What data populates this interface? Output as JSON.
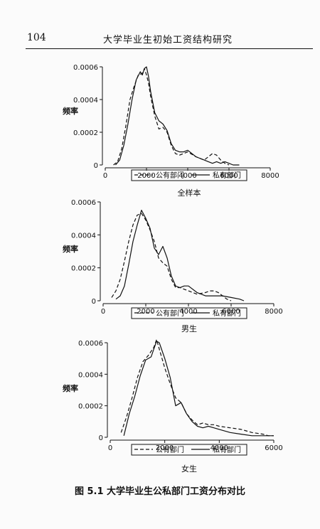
{
  "header": {
    "page_number": "104",
    "running_title": "大学毕业生初始工资结构研究"
  },
  "figure": {
    "caption": "图 5.1   大学毕业生公私部门工资分布对比"
  },
  "chart_data": [
    {
      "type": "line",
      "title": "全样本",
      "ylabel": "频率",
      "xlim": [
        0,
        8000
      ],
      "ylim": [
        0,
        0.0006
      ],
      "xticks": [
        "0",
        "2000",
        "4000",
        "6000",
        "8000"
      ],
      "yticks": [
        "0",
        "0.0002",
        "0.0004",
        "0.0006"
      ],
      "legend": [
        "公有部门",
        "私有部门"
      ],
      "series": [
        {
          "name": "公有部门",
          "style": "dashed",
          "x": [
            400,
            600,
            800,
            1000,
            1200,
            1400,
            1600,
            1800,
            1900,
            2000,
            2100,
            2200,
            2400,
            2600,
            2800,
            3000,
            3200,
            3400,
            3600,
            3800,
            4000,
            4400,
            4800,
            5000,
            5200,
            5400,
            5600,
            5800,
            6000
          ],
          "y": [
            0,
            2e-05,
            0.0001,
            0.00024,
            0.0004,
            0.00048,
            0.00055,
            0.00056,
            0.00059,
            0.00055,
            0.0005,
            0.00042,
            0.0003,
            0.00022,
            0.00023,
            0.0002,
            0.00012,
            7e-05,
            6e-05,
            7e-05,
            8e-05,
            5e-05,
            3e-05,
            5e-05,
            7e-05,
            6e-05,
            3e-05,
            1e-05,
            0
          ]
        },
        {
          "name": "私有部门",
          "style": "solid",
          "x": [
            500,
            700,
            900,
            1100,
            1300,
            1500,
            1700,
            1800,
            1900,
            2000,
            2100,
            2200,
            2400,
            2600,
            2800,
            3000,
            3200,
            3400,
            3600,
            3800,
            4000,
            4400,
            4800,
            5000,
            5200,
            5400,
            5600,
            5800,
            6000,
            6200,
            6500
          ],
          "y": [
            0,
            3e-05,
            0.00012,
            0.00025,
            0.0004,
            0.00052,
            0.00057,
            0.00055,
            0.00059,
            0.0006,
            0.00054,
            0.00045,
            0.00032,
            0.00027,
            0.00025,
            0.00021,
            0.00013,
            9e-05,
            8e-05,
            8e-05,
            9e-05,
            5e-05,
            3e-05,
            2e-05,
            1e-05,
            2e-05,
            1e-05,
            2e-05,
            1e-05,
            0,
            0
          ]
        }
      ]
    },
    {
      "type": "line",
      "title": "男生",
      "ylabel": "频率",
      "xlim": [
        0,
        8000
      ],
      "ylim": [
        0,
        0.0006
      ],
      "xticks": [
        "0",
        "2000",
        "4000",
        "6000",
        "8000"
      ],
      "yticks": [
        "0",
        "0.0002",
        "0.0004",
        "0.0006"
      ],
      "legend": [
        "公有部门",
        "私有部门"
      ],
      "series": [
        {
          "name": "公有部门",
          "style": "dashed",
          "x": [
            400,
            600,
            800,
            1000,
            1200,
            1400,
            1600,
            1800,
            2000,
            2200,
            2400,
            2600,
            2800,
            3000,
            3200,
            3400,
            3600,
            3800,
            4000,
            4400,
            4800,
            5000,
            5200,
            5400,
            5600,
            5800,
            6000
          ],
          "y": [
            2e-05,
            6e-05,
            0.00013,
            0.00024,
            0.00036,
            0.00046,
            0.00052,
            0.00053,
            0.00049,
            0.00043,
            0.00036,
            0.00026,
            0.00023,
            0.00021,
            0.00013,
            8e-05,
            8e-05,
            7e-05,
            6e-05,
            4e-05,
            5e-05,
            6e-05,
            6e-05,
            5e-05,
            3e-05,
            1e-05,
            0
          ]
        },
        {
          "name": "私有部门",
          "style": "solid",
          "x": [
            600,
            800,
            1000,
            1200,
            1400,
            1600,
            1800,
            2000,
            2200,
            2400,
            2600,
            2800,
            3000,
            3200,
            3400,
            3600,
            3800,
            4000,
            4400,
            4800,
            5200,
            5600,
            6000,
            6400,
            6600
          ],
          "y": [
            1e-05,
            3e-05,
            9e-05,
            0.00022,
            0.00036,
            0.00046,
            0.00055,
            0.0005,
            0.00044,
            0.00032,
            0.00028,
            0.00033,
            0.00026,
            0.00015,
            9e-05,
            8e-05,
            9e-05,
            9e-05,
            5e-05,
            3e-05,
            3e-05,
            3e-05,
            2e-05,
            1e-05,
            0
          ]
        }
      ]
    },
    {
      "type": "line",
      "title": "女生",
      "ylabel": "频率",
      "xlim": [
        0,
        6000
      ],
      "ylim": [
        0,
        0.0006
      ],
      "xticks": [
        "0",
        "2000",
        "4000",
        "6000"
      ],
      "yticks": [
        "0",
        "0.0002",
        "0.0004",
        "0.0006"
      ],
      "legend": [
        "公有部门",
        "私有部门"
      ],
      "series": [
        {
          "name": "公有部门",
          "style": "dashed",
          "x": [
            400,
            600,
            800,
            1000,
            1200,
            1400,
            1600,
            1700,
            1800,
            2000,
            2200,
            2400,
            2600,
            2800,
            3000,
            3200,
            3400,
            3600,
            3800,
            4000,
            4400,
            4800,
            5200,
            5600,
            5800,
            6000
          ],
          "y": [
            3e-05,
            0.00013,
            0.00025,
            0.00038,
            0.00048,
            0.00052,
            0.00057,
            0.00062,
            0.00056,
            0.00044,
            0.00034,
            0.00025,
            0.00022,
            0.00015,
            0.00011,
            8e-05,
            9e-05,
            8e-05,
            8e-05,
            7e-05,
            6e-05,
            5e-05,
            3e-05,
            2e-05,
            1e-05,
            1e-05
          ]
        },
        {
          "name": "私有部门",
          "style": "solid",
          "x": [
            500,
            700,
            900,
            1100,
            1300,
            1500,
            1600,
            1700,
            1800,
            2000,
            2200,
            2400,
            2600,
            2800,
            3000,
            3200,
            3400,
            3600,
            3800,
            4000,
            4400,
            4800,
            5200,
            5600,
            6000
          ],
          "y": [
            1e-05,
            0.00015,
            0.00026,
            0.00039,
            0.00049,
            0.00051,
            0.00056,
            0.00061,
            0.0006,
            0.0005,
            0.00038,
            0.0002,
            0.00022,
            0.00015,
            0.0001,
            7e-05,
            6e-05,
            7e-05,
            6e-05,
            5e-05,
            3e-05,
            2e-05,
            1e-05,
            1e-05,
            1e-05
          ]
        }
      ]
    }
  ]
}
